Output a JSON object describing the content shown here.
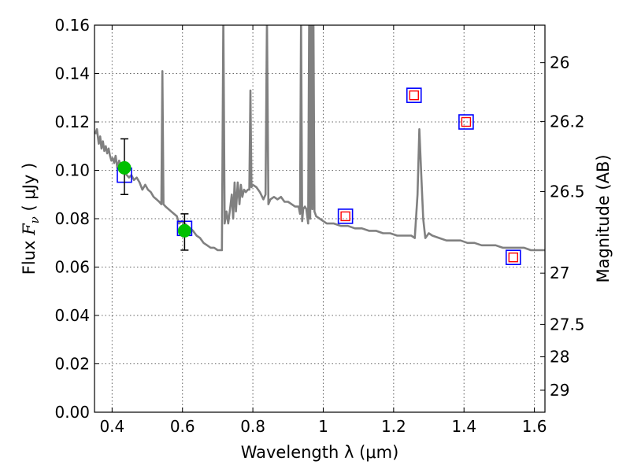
{
  "chart_data": {
    "type": "scatter",
    "title": "",
    "xlabel": "Wavelength  λ (μm)",
    "ylabel": "Flux  F_ν  ( μJy )",
    "ylabel_parts": {
      "pre": "Flux  ",
      "sym": "F",
      "sub": "ν",
      "post": "  ( μJy )"
    },
    "y2label": "Magnitude (AB)",
    "xlim": [
      0.35,
      1.63
    ],
    "ylim": [
      0.0,
      0.16
    ],
    "grid": true,
    "x_ticks": [
      {
        "v": 0.4,
        "label": "0.4"
      },
      {
        "v": 0.6,
        "label": "0.6"
      },
      {
        "v": 0.8,
        "label": "0.8"
      },
      {
        "v": 1.0,
        "label": "1"
      },
      {
        "v": 1.2,
        "label": "1.2"
      },
      {
        "v": 1.4,
        "label": "1.4"
      },
      {
        "v": 1.6,
        "label": "1.6"
      }
    ],
    "y_ticks": [
      {
        "v": 0.0,
        "label": "0.00"
      },
      {
        "v": 0.02,
        "label": "0.02"
      },
      {
        "v": 0.04,
        "label": "0.04"
      },
      {
        "v": 0.06,
        "label": "0.06"
      },
      {
        "v": 0.08,
        "label": "0.08"
      },
      {
        "v": 0.1,
        "label": "0.10"
      },
      {
        "v": 0.12,
        "label": "0.12"
      },
      {
        "v": 0.14,
        "label": "0.14"
      },
      {
        "v": 0.16,
        "label": "0.16"
      }
    ],
    "y2_ticks": [
      {
        "flux": 0.1445,
        "label": "26"
      },
      {
        "flux": 0.1202,
        "label": "26.2"
      },
      {
        "flux": 0.0912,
        "label": "26.5"
      },
      {
        "flux": 0.0575,
        "label": "27"
      },
      {
        "flux": 0.0363,
        "label": "27.5"
      },
      {
        "flux": 0.0229,
        "label": "28"
      },
      {
        "flux": 0.0091,
        "label": "29"
      }
    ],
    "model_spectrum": {
      "color": "#808080",
      "points": [
        [
          0.352,
          0.115
        ],
        [
          0.357,
          0.117
        ],
        [
          0.362,
          0.111
        ],
        [
          0.366,
          0.114
        ],
        [
          0.37,
          0.109
        ],
        [
          0.374,
          0.112
        ],
        [
          0.378,
          0.108
        ],
        [
          0.382,
          0.11
        ],
        [
          0.386,
          0.107
        ],
        [
          0.39,
          0.109
        ],
        [
          0.394,
          0.106
        ],
        [
          0.398,
          0.104
        ],
        [
          0.402,
          0.105
        ],
        [
          0.406,
          0.103
        ],
        [
          0.41,
          0.106
        ],
        [
          0.415,
          0.101
        ],
        [
          0.42,
          0.104
        ],
        [
          0.425,
          0.102
        ],
        [
          0.43,
          0.1
        ],
        [
          0.436,
          0.099
        ],
        [
          0.442,
          0.098
        ],
        [
          0.448,
          0.097
        ],
        [
          0.455,
          0.098
        ],
        [
          0.462,
          0.096
        ],
        [
          0.47,
          0.097
        ],
        [
          0.478,
          0.095
        ],
        [
          0.486,
          0.092
        ],
        [
          0.494,
          0.094
        ],
        [
          0.502,
          0.092
        ],
        [
          0.51,
          0.091
        ],
        [
          0.518,
          0.089
        ],
        [
          0.526,
          0.088
        ],
        [
          0.534,
          0.087
        ],
        [
          0.54,
          0.086
        ],
        [
          0.543,
          0.141
        ],
        [
          0.546,
          0.086
        ],
        [
          0.552,
          0.085
        ],
        [
          0.56,
          0.084
        ],
        [
          0.568,
          0.083
        ],
        [
          0.576,
          0.082
        ],
        [
          0.584,
          0.081
        ],
        [
          0.59,
          0.078
        ],
        [
          0.598,
          0.079
        ],
        [
          0.606,
          0.078
        ],
        [
          0.614,
          0.077
        ],
        [
          0.622,
          0.076
        ],
        [
          0.63,
          0.075
        ],
        [
          0.64,
          0.073
        ],
        [
          0.65,
          0.072
        ],
        [
          0.66,
          0.07
        ],
        [
          0.67,
          0.069
        ],
        [
          0.68,
          0.068
        ],
        [
          0.69,
          0.068
        ],
        [
          0.7,
          0.067
        ],
        [
          0.712,
          0.067
        ],
        [
          0.716,
          0.163
        ],
        [
          0.72,
          0.078
        ],
        [
          0.725,
          0.083
        ],
        [
          0.73,
          0.078
        ],
        [
          0.736,
          0.085
        ],
        [
          0.74,
          0.09
        ],
        [
          0.744,
          0.08
        ],
        [
          0.748,
          0.095
        ],
        [
          0.752,
          0.083
        ],
        [
          0.757,
          0.095
        ],
        [
          0.762,
          0.086
        ],
        [
          0.766,
          0.094
        ],
        [
          0.77,
          0.089
        ],
        [
          0.775,
          0.092
        ],
        [
          0.78,
          0.091
        ],
        [
          0.786,
          0.092
        ],
        [
          0.79,
          0.092
        ],
        [
          0.793,
          0.133
        ],
        [
          0.796,
          0.093
        ],
        [
          0.8,
          0.094
        ],
        [
          0.81,
          0.093
        ],
        [
          0.82,
          0.091
        ],
        [
          0.83,
          0.088
        ],
        [
          0.836,
          0.09
        ],
        [
          0.84,
          0.163
        ],
        [
          0.844,
          0.086
        ],
        [
          0.85,
          0.088
        ],
        [
          0.86,
          0.089
        ],
        [
          0.87,
          0.088
        ],
        [
          0.88,
          0.089
        ],
        [
          0.89,
          0.087
        ],
        [
          0.9,
          0.087
        ],
        [
          0.91,
          0.086
        ],
        [
          0.92,
          0.085
        ],
        [
          0.93,
          0.085
        ],
        [
          0.934,
          0.082
        ],
        [
          0.937,
          0.163
        ],
        [
          0.94,
          0.079
        ],
        [
          0.943,
          0.084
        ],
        [
          0.948,
          0.085
        ],
        [
          0.952,
          0.084
        ],
        [
          0.957,
          0.078
        ],
        [
          0.96,
          0.163
        ],
        [
          0.963,
          0.08
        ],
        [
          0.966,
          0.163
        ],
        [
          0.969,
          0.084
        ],
        [
          0.972,
          0.163
        ],
        [
          0.975,
          0.083
        ],
        [
          0.98,
          0.081
        ],
        [
          0.99,
          0.08
        ],
        [
          1.0,
          0.079
        ],
        [
          1.01,
          0.078
        ],
        [
          1.02,
          0.078
        ],
        [
          1.03,
          0.078
        ],
        [
          1.05,
          0.077
        ],
        [
          1.07,
          0.077
        ],
        [
          1.09,
          0.076
        ],
        [
          1.11,
          0.076
        ],
        [
          1.13,
          0.075
        ],
        [
          1.15,
          0.075
        ],
        [
          1.17,
          0.074
        ],
        [
          1.19,
          0.074
        ],
        [
          1.21,
          0.073
        ],
        [
          1.23,
          0.073
        ],
        [
          1.25,
          0.073
        ],
        [
          1.26,
          0.072
        ],
        [
          1.268,
          0.09
        ],
        [
          1.273,
          0.117
        ],
        [
          1.278,
          0.1
        ],
        [
          1.284,
          0.08
        ],
        [
          1.29,
          0.072
        ],
        [
          1.3,
          0.074
        ],
        [
          1.31,
          0.073
        ],
        [
          1.33,
          0.072
        ],
        [
          1.35,
          0.071
        ],
        [
          1.37,
          0.071
        ],
        [
          1.39,
          0.071
        ],
        [
          1.41,
          0.07
        ],
        [
          1.43,
          0.07
        ],
        [
          1.45,
          0.069
        ],
        [
          1.47,
          0.069
        ],
        [
          1.49,
          0.069
        ],
        [
          1.51,
          0.068
        ],
        [
          1.53,
          0.068
        ],
        [
          1.55,
          0.068
        ],
        [
          1.57,
          0.068
        ],
        [
          1.59,
          0.067
        ],
        [
          1.61,
          0.067
        ],
        [
          1.63,
          0.067
        ]
      ]
    },
    "observed": {
      "color": "#00c000",
      "points": [
        {
          "x": 0.435,
          "y": 0.101,
          "err_lo": 0.09,
          "err_hi": 0.113
        },
        {
          "x": 0.606,
          "y": 0.075,
          "err_lo": 0.067,
          "err_hi": 0.082
        }
      ]
    },
    "model_photometry": {
      "color": "#0000ff",
      "points": [
        {
          "x": 0.435,
          "y": 0.098
        },
        {
          "x": 0.606,
          "y": 0.076
        },
        {
          "x": 1.063,
          "y": 0.081
        },
        {
          "x": 1.258,
          "y": 0.131
        },
        {
          "x": 1.406,
          "y": 0.12
        },
        {
          "x": 1.54,
          "y": 0.064
        }
      ]
    },
    "upper_limits": {
      "color": "#ff0000",
      "points": [
        {
          "x": 1.063,
          "y": 0.081
        },
        {
          "x": 1.258,
          "y": 0.131
        },
        {
          "x": 1.406,
          "y": 0.12
        },
        {
          "x": 1.54,
          "y": 0.064
        }
      ]
    }
  }
}
